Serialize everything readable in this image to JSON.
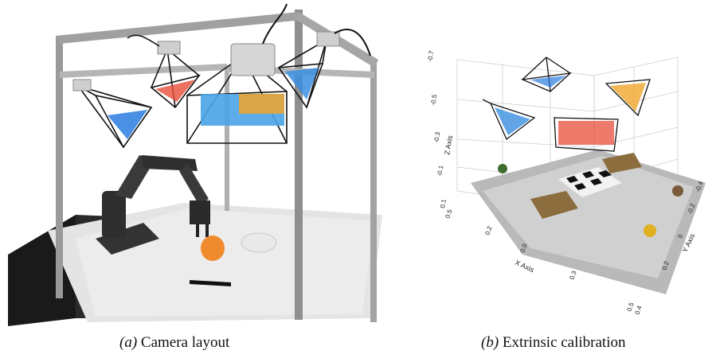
{
  "figure": {
    "panel_a": {
      "image_icon": "robot-workcell-photo-icon",
      "caption_tag": "(a)",
      "caption_text": "Camera layout"
    },
    "panel_b": {
      "image_icon": "point-cloud-calibration-plot-icon",
      "caption_tag": "(b)",
      "caption_text": "Extrinsic calibration",
      "x_axis_label": "X Axis",
      "y_axis_label": "Y Axis",
      "z_axis_label": "Z Axis",
      "z_ticks": [
        "-0.7",
        "-0.5",
        "-0.3",
        "-0.1",
        "0.1"
      ],
      "x_ticks": [
        "0.5",
        "0.2",
        "0.0",
        "0.3",
        "0.5"
      ],
      "y_ticks": [
        "0.4",
        "0.2",
        "0",
        "-0.2",
        "-0.4"
      ]
    }
  }
}
